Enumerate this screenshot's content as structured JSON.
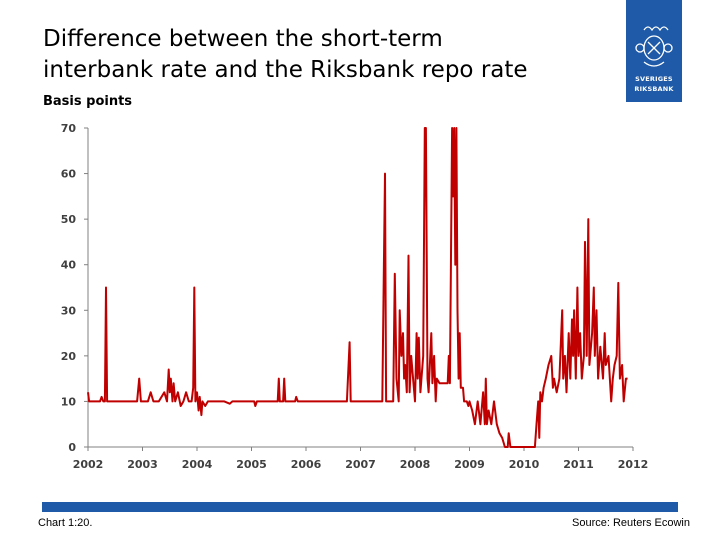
{
  "title_line1": "Difference between the short-term",
  "title_line2": "interbank rate and the Riksbank repo rate",
  "unit_label": "Basis points",
  "logo": {
    "line1": "SVERIGES",
    "line2": "RIKSBANK"
  },
  "footer": {
    "chart_number": "Chart 1:20.",
    "source": "Source: Reuters Ecowin"
  },
  "colors": {
    "series": "#c00000",
    "brand": "#1e5aa8",
    "axis": "#808080"
  },
  "chart_data": {
    "type": "line",
    "title": "Difference between the short-term interbank rate and the Riksbank repo rate",
    "ylabel": "Basis points",
    "xlabel": "",
    "xlim": [
      2002,
      2012
    ],
    "ylim": [
      0,
      70
    ],
    "yticks": [
      0,
      10,
      20,
      30,
      40,
      50,
      60,
      70
    ],
    "xticks": [
      2002,
      2003,
      2004,
      2005,
      2006,
      2007,
      2008,
      2009,
      2010,
      2011,
      2012
    ],
    "grid": false,
    "legend": "none",
    "series": [
      {
        "points": [
          [
            2002.0,
            12
          ],
          [
            2002.02,
            10
          ],
          [
            2002.1,
            10
          ],
          [
            2002.22,
            10
          ],
          [
            2002.25,
            11
          ],
          [
            2002.28,
            10
          ],
          [
            2002.31,
            10
          ],
          [
            2002.33,
            35
          ],
          [
            2002.35,
            10
          ],
          [
            2002.9,
            10
          ],
          [
            2002.94,
            15
          ],
          [
            2002.97,
            10
          ],
          [
            2003.1,
            10
          ],
          [
            2003.15,
            12
          ],
          [
            2003.2,
            10
          ],
          [
            2003.3,
            10
          ],
          [
            2003.4,
            12
          ],
          [
            2003.45,
            10
          ],
          [
            2003.48,
            17
          ],
          [
            2003.5,
            12
          ],
          [
            2003.52,
            15
          ],
          [
            2003.55,
            10
          ],
          [
            2003.57,
            14
          ],
          [
            2003.6,
            10
          ],
          [
            2003.65,
            12
          ],
          [
            2003.7,
            9
          ],
          [
            2003.75,
            10
          ],
          [
            2003.8,
            12
          ],
          [
            2003.85,
            10
          ],
          [
            2003.9,
            10
          ],
          [
            2003.93,
            13
          ],
          [
            2003.95,
            35
          ],
          [
            2003.97,
            10
          ],
          [
            2004.0,
            12
          ],
          [
            2004.03,
            8
          ],
          [
            2004.05,
            11
          ],
          [
            2004.08,
            7
          ],
          [
            2004.1,
            10
          ],
          [
            2004.15,
            9
          ],
          [
            2004.2,
            10
          ],
          [
            2004.5,
            10
          ],
          [
            2004.6,
            9.5
          ],
          [
            2004.65,
            10
          ],
          [
            2005.05,
            10
          ],
          [
            2005.07,
            9
          ],
          [
            2005.1,
            10
          ],
          [
            2005.48,
            10
          ],
          [
            2005.5,
            15
          ],
          [
            2005.52,
            10
          ],
          [
            2005.58,
            10
          ],
          [
            2005.6,
            15
          ],
          [
            2005.62,
            10
          ],
          [
            2005.8,
            10
          ],
          [
            2005.82,
            11
          ],
          [
            2005.85,
            10
          ],
          [
            2006.5,
            10
          ],
          [
            2006.75,
            10
          ],
          [
            2006.8,
            23
          ],
          [
            2006.82,
            10
          ],
          [
            2007.3,
            10
          ],
          [
            2007.4,
            10
          ],
          [
            2007.43,
            40
          ],
          [
            2007.45,
            60
          ],
          [
            2007.47,
            10
          ],
          [
            2007.6,
            10
          ],
          [
            2007.63,
            38
          ],
          [
            2007.66,
            15
          ],
          [
            2007.7,
            10
          ],
          [
            2007.72,
            30
          ],
          [
            2007.75,
            20
          ],
          [
            2007.78,
            25
          ],
          [
            2007.8,
            15
          ],
          [
            2007.82,
            18
          ],
          [
            2007.85,
            12
          ],
          [
            2007.88,
            42
          ],
          [
            2007.9,
            12
          ],
          [
            2007.93,
            20
          ],
          [
            2007.95,
            17
          ],
          [
            2008.0,
            10
          ],
          [
            2008.03,
            25
          ],
          [
            2008.05,
            15
          ],
          [
            2008.07,
            24
          ],
          [
            2008.1,
            12
          ],
          [
            2008.15,
            20
          ],
          [
            2008.18,
            70
          ],
          [
            2008.2,
            70
          ],
          [
            2008.23,
            15
          ],
          [
            2008.25,
            12
          ],
          [
            2008.3,
            25
          ],
          [
            2008.32,
            14
          ],
          [
            2008.35,
            20
          ],
          [
            2008.38,
            10
          ],
          [
            2008.4,
            15
          ],
          [
            2008.45,
            14
          ],
          [
            2008.5,
            14
          ],
          [
            2008.55,
            14
          ],
          [
            2008.6,
            14
          ],
          [
            2008.62,
            20
          ],
          [
            2008.64,
            14
          ],
          [
            2008.68,
            70
          ],
          [
            2008.7,
            55
          ],
          [
            2008.72,
            70
          ],
          [
            2008.74,
            40
          ],
          [
            2008.76,
            70
          ],
          [
            2008.78,
            30
          ],
          [
            2008.8,
            15
          ],
          [
            2008.82,
            25
          ],
          [
            2008.84,
            13
          ],
          [
            2008.88,
            13
          ],
          [
            2008.9,
            10
          ],
          [
            2008.95,
            10
          ],
          [
            2008.98,
            9
          ],
          [
            2009.0,
            10
          ],
          [
            2009.05,
            8
          ],
          [
            2009.1,
            5
          ],
          [
            2009.15,
            10
          ],
          [
            2009.2,
            5
          ],
          [
            2009.25,
            12
          ],
          [
            2009.28,
            5
          ],
          [
            2009.3,
            15
          ],
          [
            2009.32,
            5
          ],
          [
            2009.35,
            8
          ],
          [
            2009.4,
            5
          ],
          [
            2009.45,
            10
          ],
          [
            2009.5,
            5
          ],
          [
            2009.55,
            3
          ],
          [
            2009.6,
            2
          ],
          [
            2009.65,
            0
          ],
          [
            2009.7,
            0
          ],
          [
            2009.72,
            3
          ],
          [
            2009.75,
            0
          ],
          [
            2010.0,
            0
          ],
          [
            2010.2,
            0
          ],
          [
            2010.23,
            5
          ],
          [
            2010.26,
            10
          ],
          [
            2010.28,
            2
          ],
          [
            2010.3,
            12
          ],
          [
            2010.33,
            10
          ],
          [
            2010.36,
            13
          ],
          [
            2010.4,
            15
          ],
          [
            2010.45,
            18
          ],
          [
            2010.5,
            20
          ],
          [
            2010.53,
            13
          ],
          [
            2010.55,
            15
          ],
          [
            2010.6,
            12
          ],
          [
            2010.65,
            15
          ],
          [
            2010.7,
            30
          ],
          [
            2010.72,
            15
          ],
          [
            2010.75,
            20
          ],
          [
            2010.78,
            12
          ],
          [
            2010.82,
            25
          ],
          [
            2010.85,
            15
          ],
          [
            2010.88,
            28
          ],
          [
            2010.9,
            20
          ],
          [
            2010.92,
            30
          ],
          [
            2010.95,
            15
          ],
          [
            2010.98,
            35
          ],
          [
            2011.0,
            20
          ],
          [
            2011.03,
            25
          ],
          [
            2011.06,
            15
          ],
          [
            2011.1,
            20
          ],
          [
            2011.12,
            45
          ],
          [
            2011.15,
            20
          ],
          [
            2011.18,
            50
          ],
          [
            2011.2,
            18
          ],
          [
            2011.25,
            25
          ],
          [
            2011.28,
            35
          ],
          [
            2011.3,
            20
          ],
          [
            2011.33,
            30
          ],
          [
            2011.36,
            15
          ],
          [
            2011.4,
            22
          ],
          [
            2011.45,
            15
          ],
          [
            2011.48,
            25
          ],
          [
            2011.5,
            18
          ],
          [
            2011.55,
            20
          ],
          [
            2011.6,
            10
          ],
          [
            2011.63,
            15
          ],
          [
            2011.66,
            18
          ],
          [
            2011.7,
            20
          ],
          [
            2011.73,
            36
          ],
          [
            2011.76,
            15
          ],
          [
            2011.8,
            18
          ],
          [
            2011.83,
            10
          ],
          [
            2011.87,
            15
          ],
          [
            2011.9,
            15
          ]
        ]
      }
    ]
  }
}
